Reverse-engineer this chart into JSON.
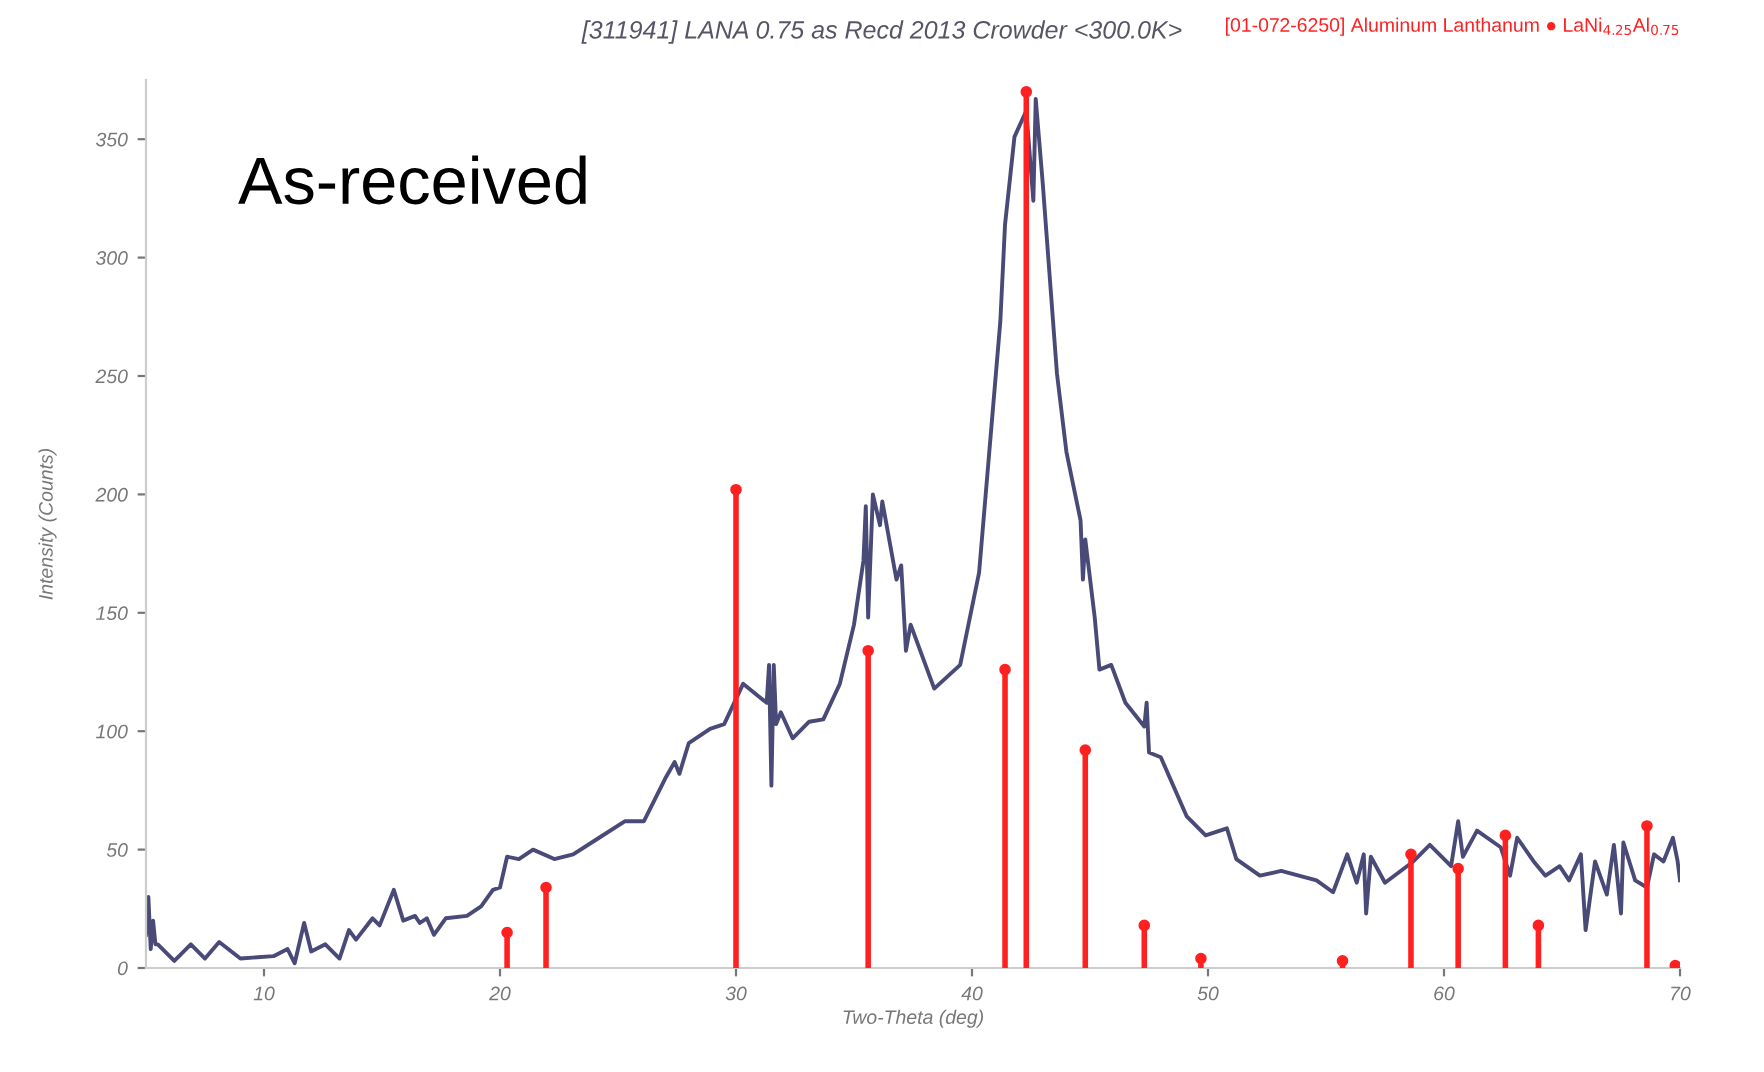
{
  "chart_data": {
    "type": "line",
    "title": "[311941] LANA 0.75 as Recd 2013 Crowder <300.0K>",
    "xlabel": "Two-Theta (deg)",
    "ylabel": "Intensity (Counts)",
    "annotations": [
      "As-received"
    ],
    "xlim": [
      5,
      70
    ],
    "ylim": [
      0,
      375
    ],
    "xticks": [
      10,
      20,
      30,
      40,
      50,
      60,
      70
    ],
    "yticks": [
      0,
      50,
      100,
      150,
      200,
      250,
      300,
      350
    ],
    "grid": false,
    "series": [
      {
        "color": "#4a4a78",
        "x": [
          5.0,
          5.1,
          5.2,
          5.3,
          5.4,
          5.5,
          6.2,
          6.9,
          7.5,
          8.1,
          9.0,
          10.4,
          11.0,
          11.3,
          11.7,
          12.0,
          12.6,
          13.2,
          13.6,
          13.9,
          14.6,
          14.9,
          15.5,
          15.9,
          16.4,
          16.6,
          16.9,
          17.2,
          17.7,
          18.6,
          19.2,
          19.7,
          20.0,
          20.3,
          20.8,
          21.4,
          22.3,
          23.1,
          24.2,
          25.3,
          26.1,
          27.0,
          27.4,
          27.6,
          28.0,
          28.9,
          29.5,
          30.3,
          31.3,
          31.4,
          31.5,
          31.6,
          31.7,
          31.9,
          32.4,
          33.1,
          33.7,
          34.4,
          35.0,
          35.4,
          35.5,
          35.6,
          35.8,
          36.1,
          36.2,
          36.8,
          37.0,
          37.2,
          37.4,
          38.4,
          39.5,
          40.3,
          41.2,
          41.4,
          41.8,
          42.3,
          42.6,
          42.7,
          43.0,
          43.6,
          44.0,
          44.6,
          44.7,
          44.8,
          45.2,
          45.4,
          45.9,
          46.5,
          47.3,
          47.4,
          47.5,
          48.0,
          49.1,
          49.9,
          50.8,
          51.2,
          52.2,
          53.1,
          54.6,
          55.3,
          55.9,
          56.3,
          56.6,
          56.7,
          56.9,
          57.5,
          58.7,
          59.4,
          60.3,
          60.6,
          60.8,
          61.4,
          62.4,
          62.8,
          63.1,
          63.8,
          64.3,
          64.9,
          65.3,
          65.8,
          66.0,
          66.4,
          66.9,
          67.2,
          67.5,
          67.6,
          68.1,
          68.6,
          68.9,
          69.3,
          69.7,
          69.9,
          70.0
        ],
        "values": [
          14,
          30,
          8,
          20,
          10,
          10,
          3,
          10,
          4,
          11,
          4,
          5,
          8,
          2,
          19,
          7,
          10,
          4,
          16,
          12,
          21,
          18,
          33,
          20,
          22,
          19,
          21,
          14,
          21,
          22,
          26,
          33,
          34,
          47,
          46,
          50,
          46,
          48,
          55,
          62,
          62,
          80,
          87,
          82,
          95,
          101,
          103,
          120,
          112,
          128,
          77,
          128,
          103,
          108,
          97,
          104,
          105,
          120,
          145,
          172,
          195,
          148,
          200,
          187,
          197,
          164,
          170,
          134,
          145,
          118,
          128,
          167,
          273,
          314,
          351,
          362,
          324,
          367,
          331,
          251,
          218,
          189,
          164,
          181,
          148,
          126,
          128,
          112,
          102,
          112,
          91,
          89,
          64,
          56,
          59,
          46,
          39,
          41,
          37,
          32,
          48,
          36,
          48,
          23,
          47,
          36,
          45,
          52,
          43,
          62,
          47,
          58,
          51,
          39,
          55,
          45,
          39,
          43,
          37,
          48,
          16,
          45,
          31,
          52,
          23,
          53,
          37,
          34,
          48,
          45,
          55,
          45,
          37
        ]
      },
      {
        "type": "lollipop",
        "name": "[01-072-6250] Aluminum Lanthanum ● LaNi$_{4.25}$Al$_{0.75}$",
        "color": "#ff2020",
        "marker": "circle",
        "x": [
          20.3,
          21.95,
          30.0,
          35.6,
          41.4,
          42.3,
          44.8,
          47.3,
          49.7,
          55.7,
          58.6,
          60.6,
          62.6,
          64.0,
          68.6,
          69.8
        ],
        "values": [
          15,
          34,
          202,
          134,
          126,
          370,
          92,
          18,
          4,
          3,
          48,
          42,
          56,
          18,
          60,
          1
        ]
      }
    ]
  }
}
